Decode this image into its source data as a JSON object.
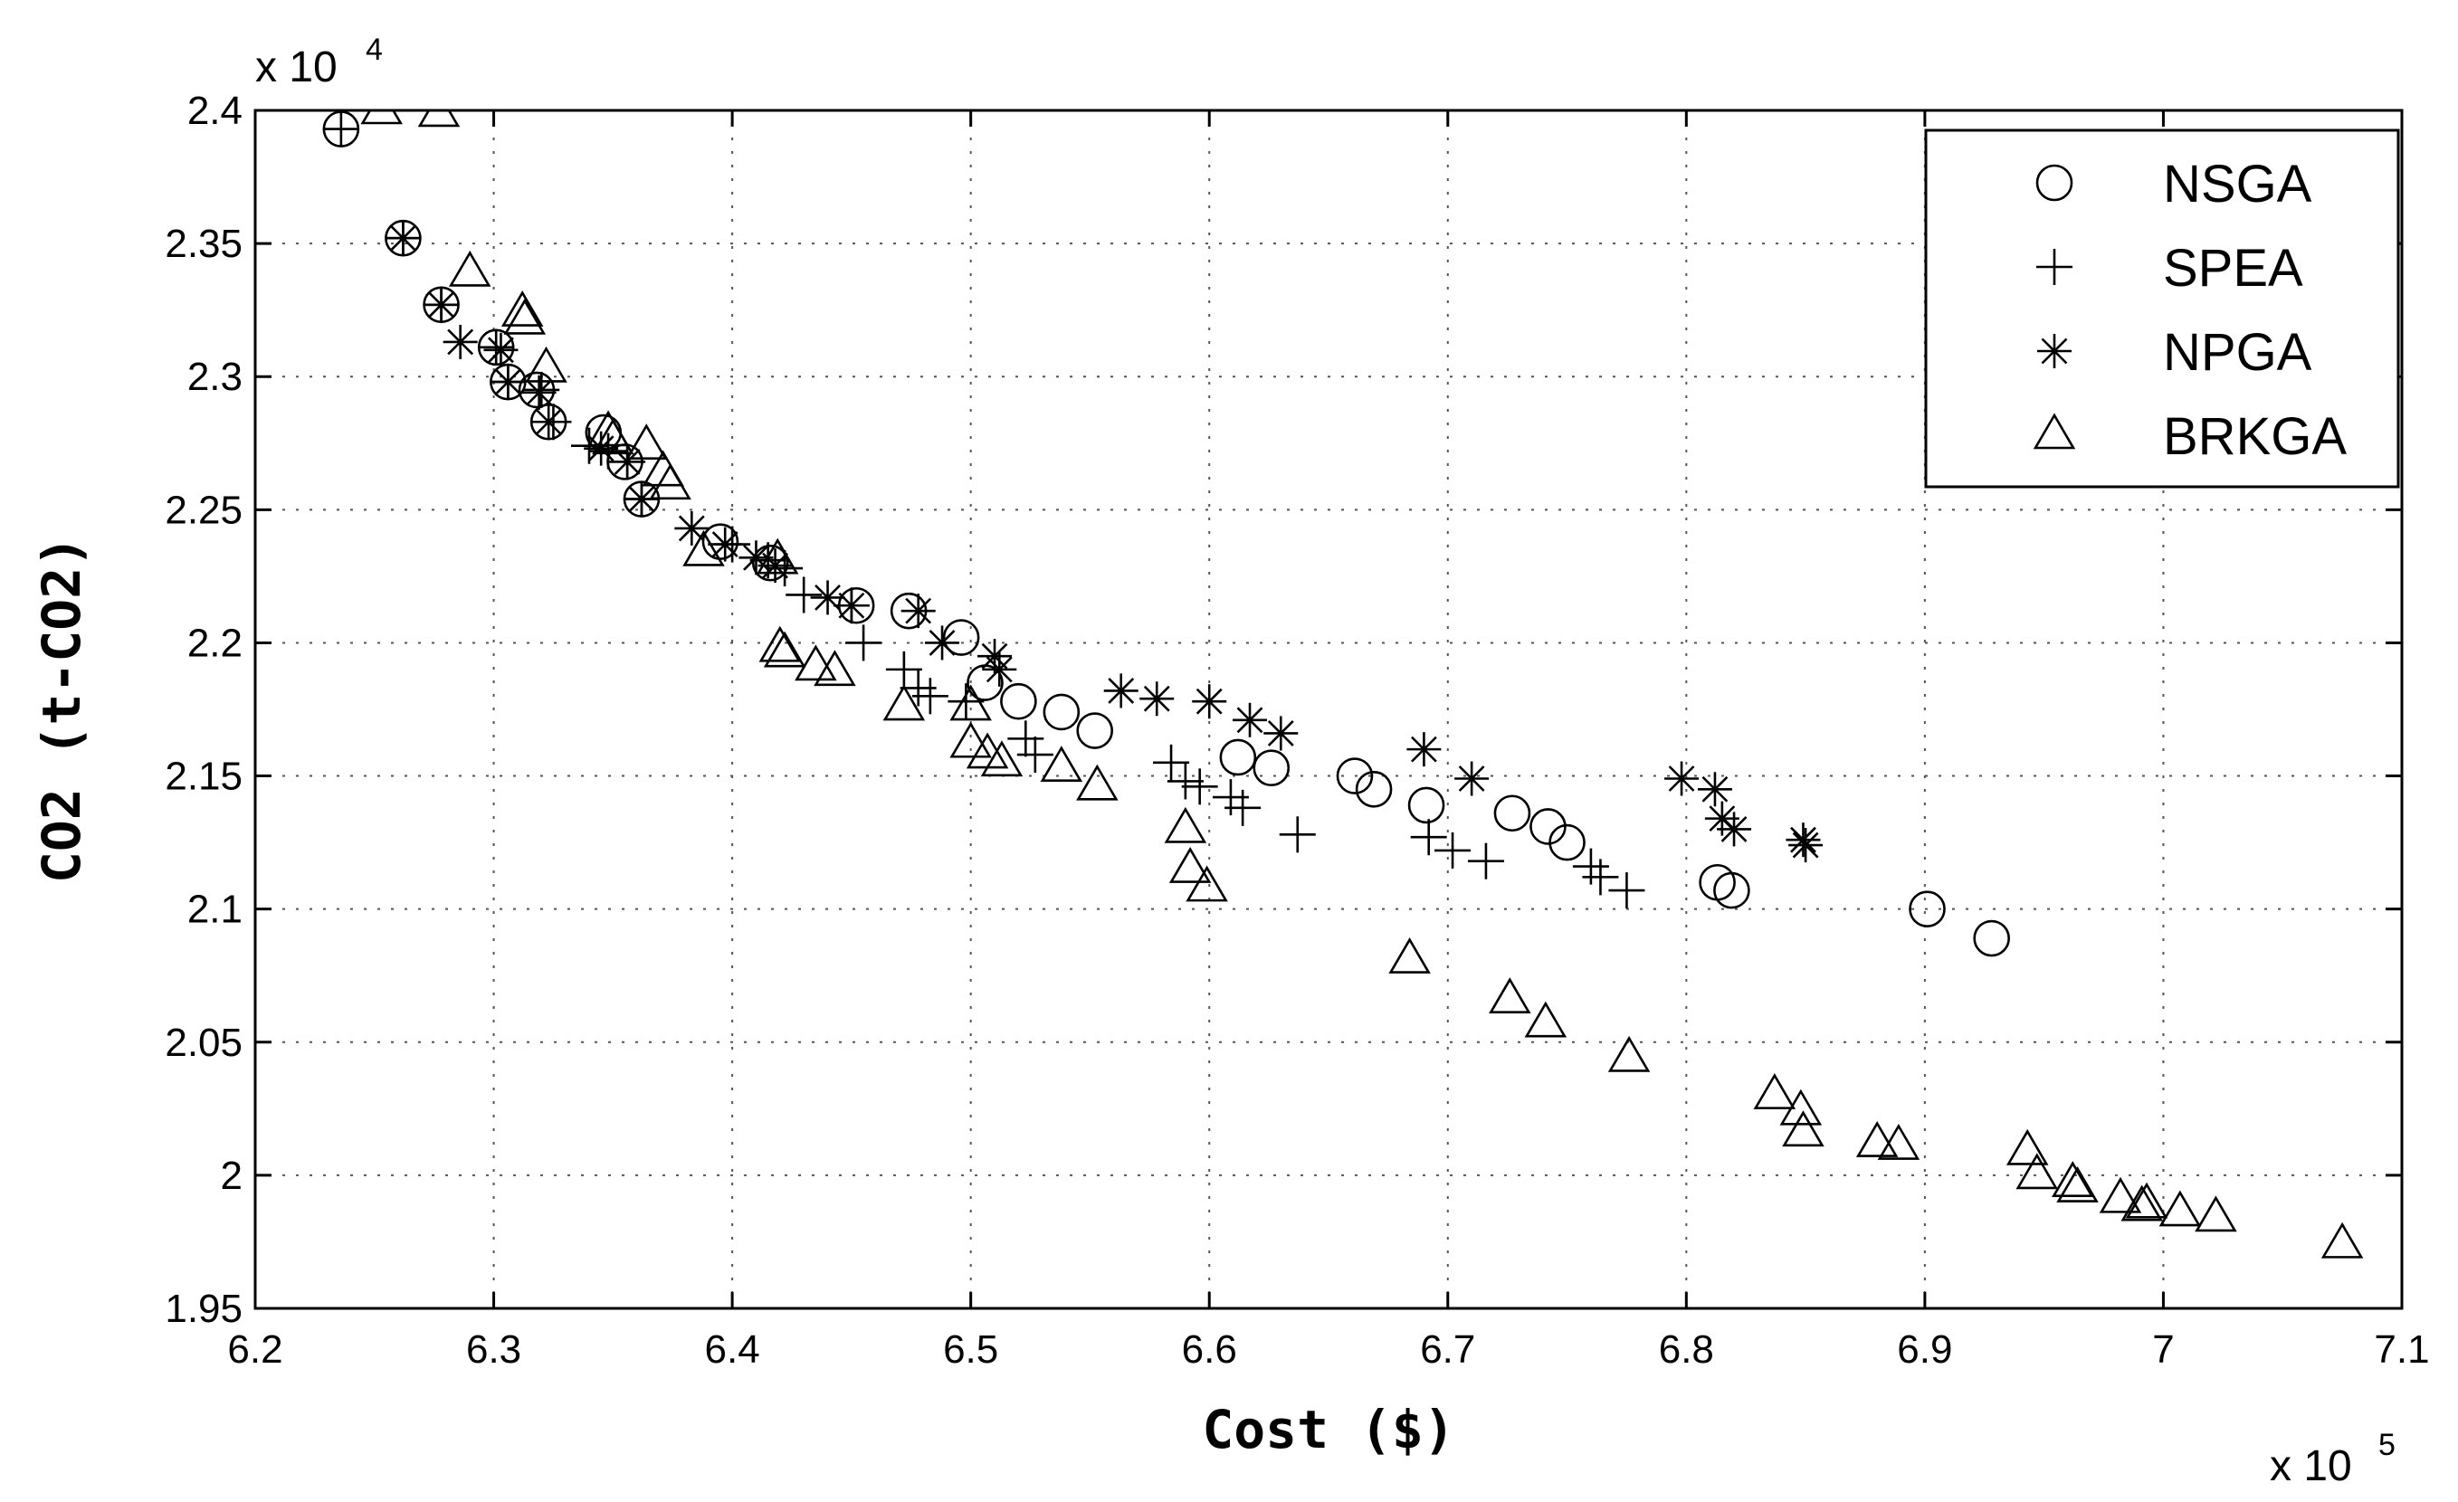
{
  "chart_data": {
    "type": "scatter",
    "title": "",
    "xlabel": "Cost ($)",
    "ylabel": "CO2 (t-CO2)",
    "x_multiplier": "x 10",
    "x_multiplier_exp": "5",
    "y_multiplier": "x 10",
    "y_multiplier_exp": "4",
    "xlim": [
      6.2,
      7.1
    ],
    "ylim": [
      1.95,
      2.4
    ],
    "x_ticks": [
      "6.2",
      "6.3",
      "6.4",
      "6.5",
      "6.6",
      "6.7",
      "6.8",
      "6.9",
      "7",
      "7.1"
    ],
    "y_ticks": [
      "1.95",
      "2",
      "2.05",
      "2.1",
      "2.15",
      "2.2",
      "2.25",
      "2.3",
      "2.35",
      "2.4"
    ],
    "grid": true,
    "legend_position": "top-right",
    "series": [
      {
        "name": "NSGA",
        "marker": "circle",
        "points": [
          [
            6.236,
            2.393
          ],
          [
            6.262,
            2.352
          ],
          [
            6.278,
            2.327
          ],
          [
            6.301,
            2.311
          ],
          [
            6.306,
            2.298
          ],
          [
            6.318,
            2.295
          ],
          [
            6.323,
            2.283
          ],
          [
            6.346,
            2.279
          ],
          [
            6.355,
            2.268
          ],
          [
            6.362,
            2.254
          ],
          [
            6.395,
            2.238
          ],
          [
            6.416,
            2.23
          ],
          [
            6.452,
            2.214
          ],
          [
            6.474,
            2.212
          ],
          [
            6.496,
            2.202
          ],
          [
            6.506,
            2.185
          ],
          [
            6.52,
            2.178
          ],
          [
            6.538,
            2.174
          ],
          [
            6.552,
            2.167
          ],
          [
            6.612,
            2.157
          ],
          [
            6.626,
            2.153
          ],
          [
            6.661,
            2.15
          ],
          [
            6.669,
            2.145
          ],
          [
            6.691,
            2.139
          ],
          [
            6.727,
            2.136
          ],
          [
            6.742,
            2.131
          ],
          [
            6.75,
            2.125
          ],
          [
            6.813,
            2.11
          ],
          [
            6.819,
            2.107
          ],
          [
            6.901,
            2.1
          ],
          [
            6.928,
            2.089
          ]
        ]
      },
      {
        "name": "SPEA",
        "marker": "plus",
        "points": [
          [
            6.236,
            2.393
          ],
          [
            6.262,
            2.352
          ],
          [
            6.278,
            2.327
          ],
          [
            6.301,
            2.311
          ],
          [
            6.306,
            2.298
          ],
          [
            6.32,
            2.295
          ],
          [
            6.325,
            2.283
          ],
          [
            6.34,
            2.274
          ],
          [
            6.348,
            2.272
          ],
          [
            6.356,
            2.268
          ],
          [
            6.362,
            2.254
          ],
          [
            6.4,
            2.237
          ],
          [
            6.415,
            2.231
          ],
          [
            6.422,
            2.228
          ],
          [
            6.43,
            2.218
          ],
          [
            6.45,
            2.214
          ],
          [
            6.455,
            2.2
          ],
          [
            6.472,
            2.19
          ],
          [
            6.478,
            2.183
          ],
          [
            6.483,
            2.18
          ],
          [
            6.498,
            2.178
          ],
          [
            6.523,
            2.164
          ],
          [
            6.527,
            2.158
          ],
          [
            6.584,
            2.155
          ],
          [
            6.59,
            2.148
          ],
          [
            6.596,
            2.146
          ],
          [
            6.609,
            2.142
          ],
          [
            6.614,
            2.138
          ],
          [
            6.637,
            2.128
          ],
          [
            6.692,
            2.127
          ],
          [
            6.702,
            2.122
          ],
          [
            6.716,
            2.118
          ],
          [
            6.76,
            2.116
          ],
          [
            6.764,
            2.112
          ],
          [
            6.775,
            2.107
          ]
        ]
      },
      {
        "name": "NPGA",
        "marker": "asterisk",
        "points": [
          [
            6.262,
            2.352
          ],
          [
            6.278,
            2.327
          ],
          [
            6.286,
            2.313
          ],
          [
            6.303,
            2.31
          ],
          [
            6.306,
            2.298
          ],
          [
            6.319,
            2.294
          ],
          [
            6.323,
            2.283
          ],
          [
            6.345,
            2.273
          ],
          [
            6.356,
            2.268
          ],
          [
            6.362,
            2.254
          ],
          [
            6.383,
            2.243
          ],
          [
            6.397,
            2.237
          ],
          [
            6.41,
            2.232
          ],
          [
            6.418,
            2.229
          ],
          [
            6.44,
            2.217
          ],
          [
            6.45,
            2.214
          ],
          [
            6.478,
            2.212
          ],
          [
            6.488,
            2.2
          ],
          [
            6.51,
            2.195
          ],
          [
            6.512,
            2.19
          ],
          [
            6.563,
            2.182
          ],
          [
            6.578,
            2.179
          ],
          [
            6.6,
            2.178
          ],
          [
            6.617,
            2.171
          ],
          [
            6.63,
            2.166
          ],
          [
            6.69,
            2.16
          ],
          [
            6.71,
            2.149
          ],
          [
            6.798,
            2.149
          ],
          [
            6.812,
            2.145
          ],
          [
            6.815,
            2.134
          ],
          [
            6.82,
            2.13
          ],
          [
            6.849,
            2.126
          ],
          [
            6.85,
            2.124
          ]
        ]
      },
      {
        "name": "BRKGA",
        "marker": "triangle",
        "points": [
          [
            6.253,
            2.4
          ],
          [
            6.277,
            2.399
          ],
          [
            6.29,
            2.339
          ],
          [
            6.312,
            2.324
          ],
          [
            6.313,
            2.321
          ],
          [
            6.322,
            2.303
          ],
          [
            6.348,
            2.279
          ],
          [
            6.35,
            2.276
          ],
          [
            6.364,
            2.274
          ],
          [
            6.371,
            2.264
          ],
          [
            6.374,
            2.259
          ],
          [
            6.388,
            2.234
          ],
          [
            6.419,
            2.231
          ],
          [
            6.42,
            2.198
          ],
          [
            6.422,
            2.196
          ],
          [
            6.435,
            2.191
          ],
          [
            6.443,
            2.189
          ],
          [
            6.472,
            2.176
          ],
          [
            6.5,
            2.176
          ],
          [
            6.5,
            2.162
          ],
          [
            6.507,
            2.158
          ],
          [
            6.513,
            2.155
          ],
          [
            6.538,
            2.153
          ],
          [
            6.553,
            2.146
          ],
          [
            6.59,
            2.13
          ],
          [
            6.592,
            2.115
          ],
          [
            6.599,
            2.108
          ],
          [
            6.684,
            2.081
          ],
          [
            6.726,
            2.066
          ],
          [
            6.741,
            2.057
          ],
          [
            6.776,
            2.044
          ],
          [
            6.837,
            2.03
          ],
          [
            6.848,
            2.024
          ],
          [
            6.849,
            2.016
          ],
          [
            6.88,
            2.012
          ],
          [
            6.889,
            2.011
          ],
          [
            6.943,
            2.009
          ],
          [
            6.947,
            2
          ],
          [
            6.962,
            1.997
          ],
          [
            6.964,
            1.995
          ],
          [
            6.982,
            1.991
          ],
          [
            6.991,
            1.988
          ],
          [
            6.993,
            1.989
          ],
          [
            7.007,
            1.986
          ],
          [
            7.022,
            1.984
          ],
          [
            7.075,
            1.974
          ]
        ]
      }
    ]
  }
}
